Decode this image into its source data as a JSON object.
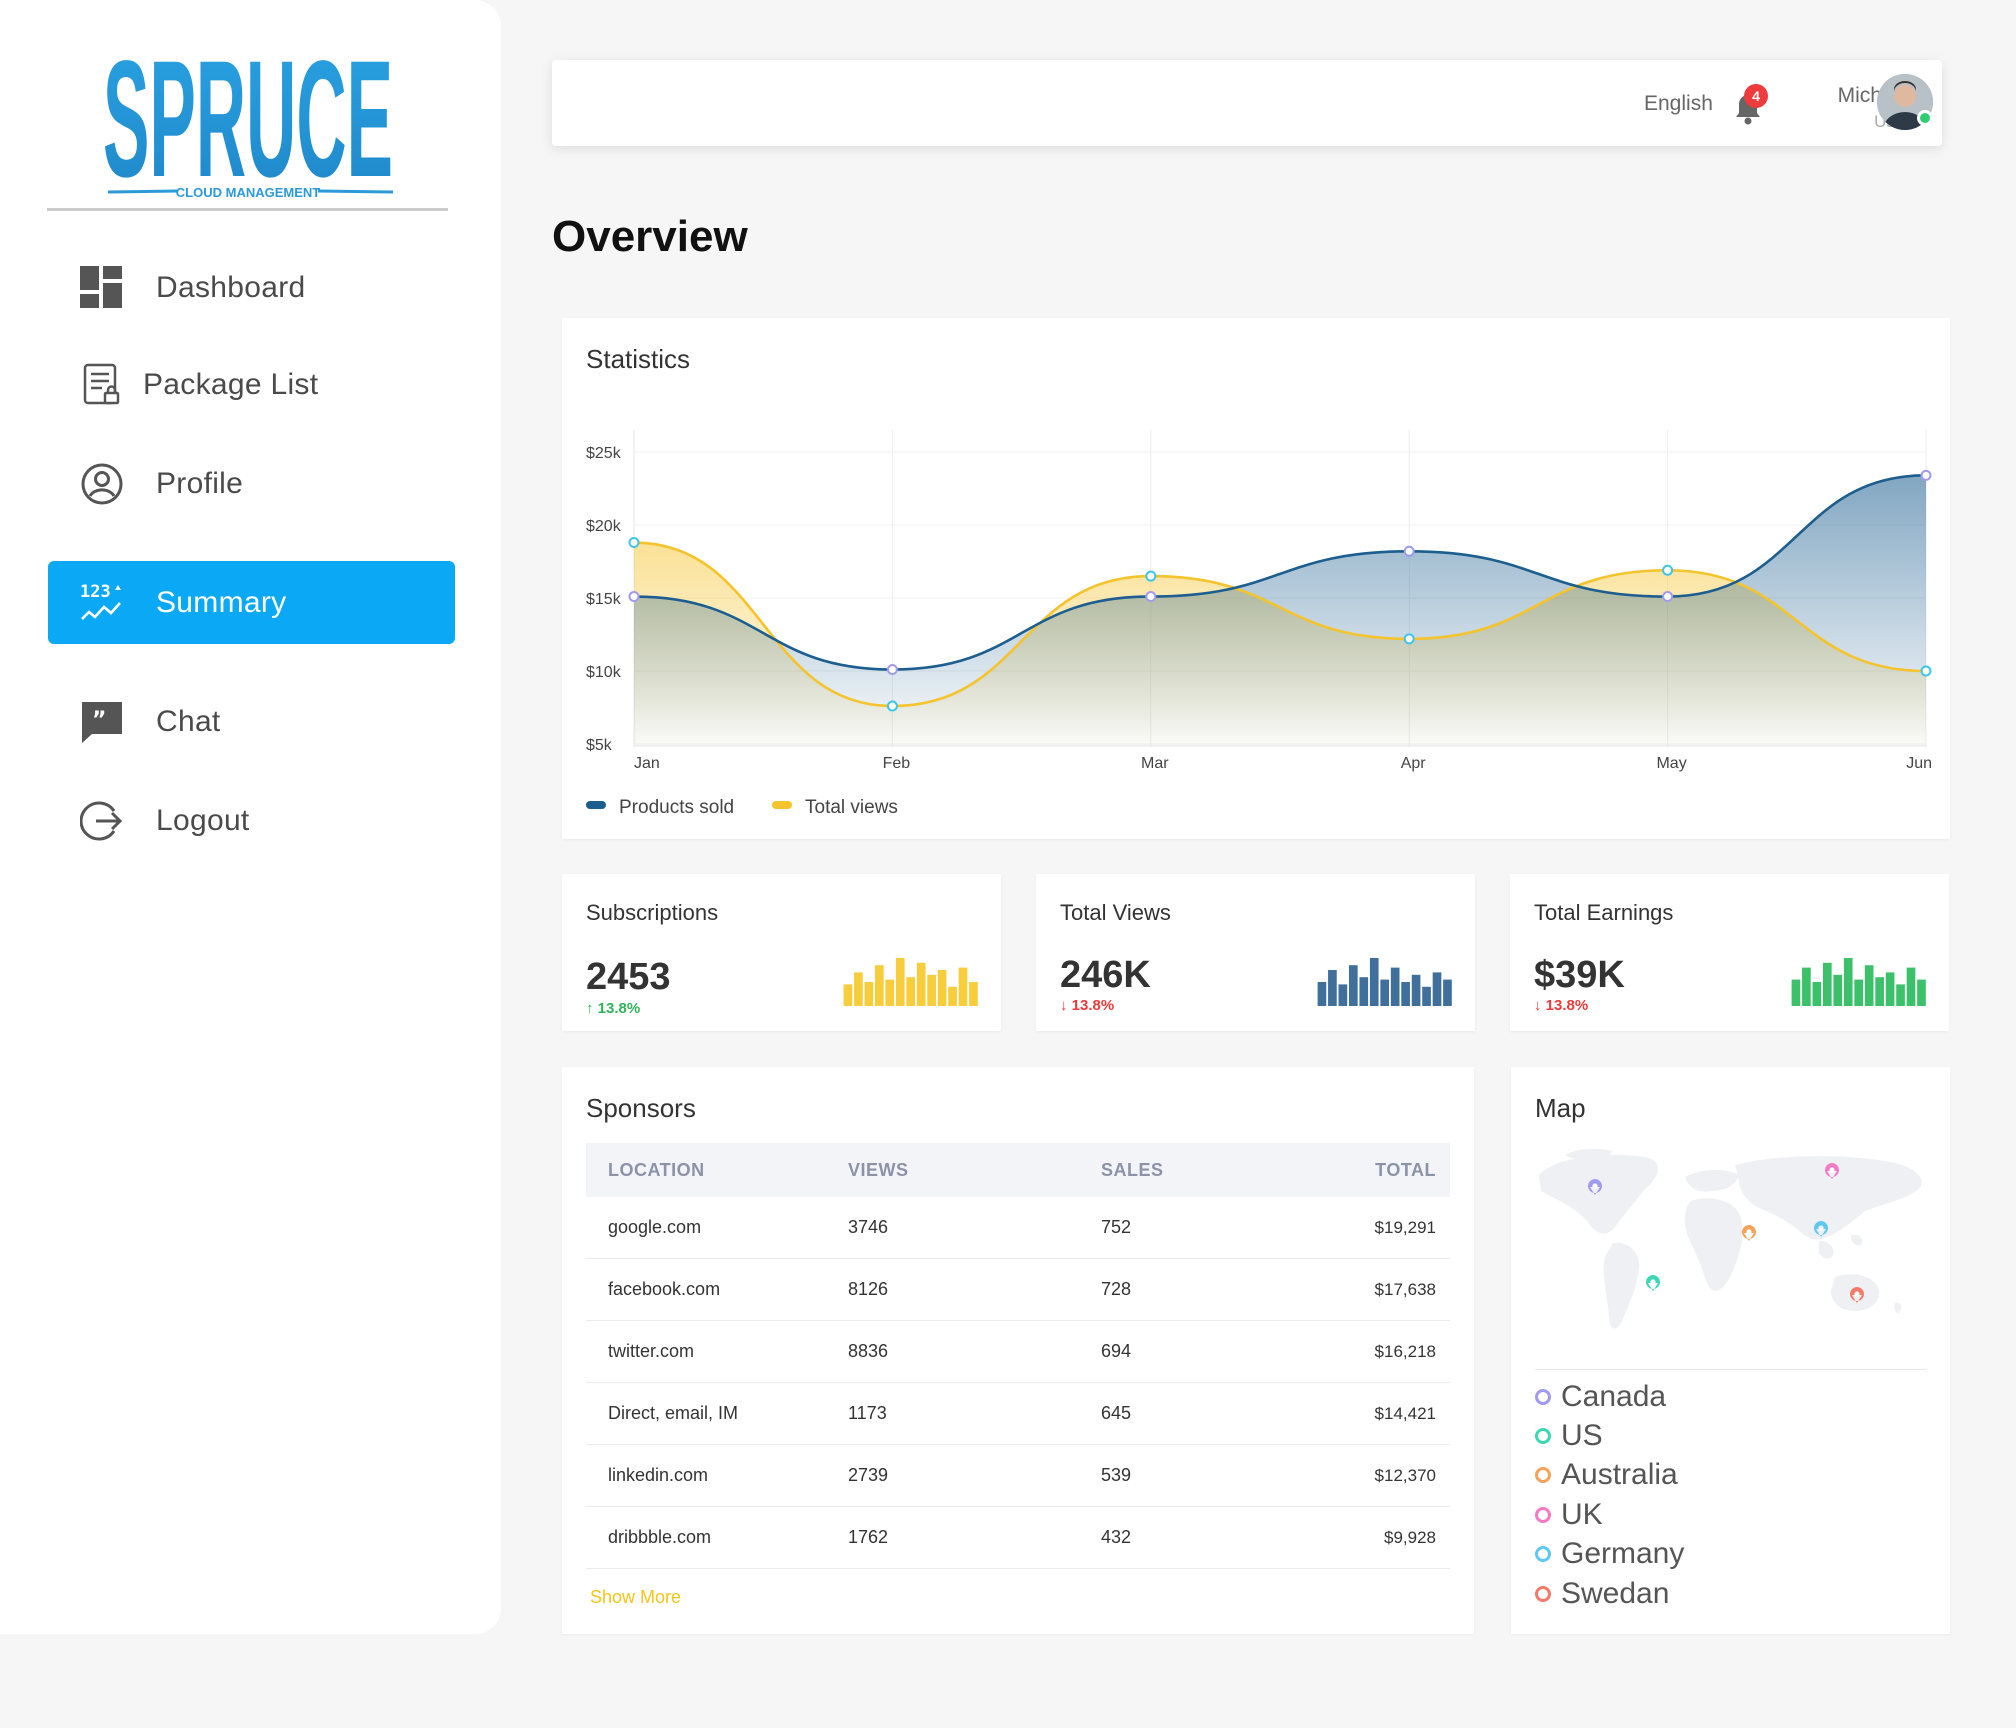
{
  "brand": {
    "name": "SPRUCE",
    "tagline": "CLOUD MANAGEMENT",
    "color": "#2c9ad8"
  },
  "sidebar": {
    "items": [
      {
        "label": "Dashboard",
        "icon": "dashboard-icon",
        "active": false
      },
      {
        "label": "Package List",
        "icon": "package-list-icon",
        "active": false
      },
      {
        "label": "Profile",
        "icon": "profile-icon",
        "active": false
      },
      {
        "label": "Summary",
        "icon": "summary-icon",
        "active": true
      },
      {
        "label": "Chat",
        "icon": "chat-icon",
        "active": false
      },
      {
        "label": "Logout",
        "icon": "logout-icon",
        "active": false
      }
    ],
    "active_color": "#0aa8f5"
  },
  "header": {
    "language": "English",
    "notifications": "4",
    "user_name": "Michael",
    "user_role": "User"
  },
  "page": {
    "title": "Overview"
  },
  "statistics": {
    "title": "Statistics",
    "chart_data": {
      "type": "area",
      "categories": [
        "Jan",
        "Feb",
        "Mar",
        "Apr",
        "May",
        "Jun"
      ],
      "y_ticks": [
        "$25k",
        "$20k",
        "$15k",
        "$10k",
        "$5k"
      ],
      "ylim": [
        5,
        25
      ],
      "series": [
        {
          "name": "Products sold",
          "color": "#1b5e8f",
          "values": [
            15.1,
            10.1,
            15.1,
            18.2,
            15.1,
            23.4
          ]
        },
        {
          "name": "Total views",
          "color": "#f5c32c",
          "values": [
            18.8,
            7.6,
            16.5,
            12.2,
            16.9,
            10.0
          ]
        }
      ],
      "legend": "bottom-left"
    }
  },
  "kpis": [
    {
      "title": "Subscriptions",
      "value": "2453",
      "delta": "13.8%",
      "direction": "up",
      "bar_color": "#f7cd3b",
      "bars": [
        0.45,
        0.7,
        0.5,
        0.85,
        0.55,
        1.0,
        0.6,
        0.9,
        0.65,
        0.75,
        0.4,
        0.8,
        0.5
      ]
    },
    {
      "title": "Total Views",
      "value": "246K",
      "delta": "13.8%",
      "direction": "down",
      "bar_color": "#3f6f9a",
      "bars": [
        0.5,
        0.75,
        0.45,
        0.85,
        0.6,
        1.0,
        0.55,
        0.8,
        0.5,
        0.65,
        0.4,
        0.7,
        0.55
      ]
    },
    {
      "title": "Total Earnings",
      "value": "$39K",
      "delta": "13.8%",
      "direction": "down",
      "bar_color": "#3cc16a",
      "bars": [
        0.55,
        0.8,
        0.5,
        0.9,
        0.65,
        1.0,
        0.55,
        0.85,
        0.6,
        0.7,
        0.45,
        0.8,
        0.55
      ]
    }
  ],
  "sponsors": {
    "title": "Sponsors",
    "columns": [
      "LOCATION",
      "VIEWS",
      "SALES",
      "TOTAL"
    ],
    "rows": [
      [
        "google.com",
        "3746",
        "752",
        "$19,291"
      ],
      [
        "facebook.com",
        "8126",
        "728",
        "$17,638"
      ],
      [
        "twitter.com",
        "8836",
        "694",
        "$16,218"
      ],
      [
        "Direct, email, IM",
        "1173",
        "645",
        "$14,421"
      ],
      [
        "linkedin.com",
        "2739",
        "539",
        "$12,370"
      ],
      [
        "dribbble.com",
        "1762",
        "432",
        "$9,928"
      ]
    ],
    "show_more": "Show More"
  },
  "map": {
    "title": "Map",
    "legend": [
      {
        "label": "Canada",
        "color": "#a09af0"
      },
      {
        "label": "US",
        "color": "#3fd6b4"
      },
      {
        "label": "Australia",
        "color": "#f5a25a"
      },
      {
        "label": "UK",
        "color": "#f57ac4"
      },
      {
        "label": "Germany",
        "color": "#5ec8f5"
      },
      {
        "label": "Swedan",
        "color": "#f57a6a"
      }
    ]
  }
}
